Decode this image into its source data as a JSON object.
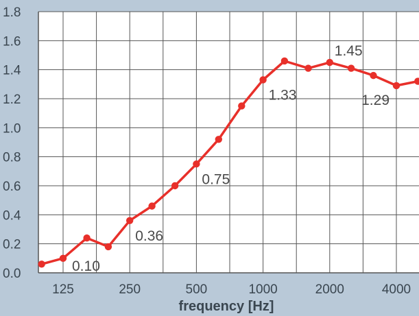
{
  "chart_data": {
    "type": "line",
    "xlabel": "frequency [Hz]",
    "ylabel": "",
    "x_scale": "log2 (third-octave points)",
    "x_ticks": [
      "125",
      "250",
      "500",
      "1000",
      "2000",
      "4000"
    ],
    "y_ticks": [
      "0.0",
      "0.2",
      "0.4",
      "0.6",
      "0.8",
      "1.0",
      "1.2",
      "1.4",
      "1.6",
      "1.8"
    ],
    "ylim": [
      0,
      1.8
    ],
    "grid": true,
    "series": [
      {
        "color": "#e8302a",
        "points": [
          {
            "x": 100,
            "y": 0.06
          },
          {
            "x": 125,
            "y": 0.1
          },
          {
            "x": 160,
            "y": 0.24
          },
          {
            "x": 200,
            "y": 0.18
          },
          {
            "x": 250,
            "y": 0.36
          },
          {
            "x": 315,
            "y": 0.46
          },
          {
            "x": 400,
            "y": 0.6
          },
          {
            "x": 500,
            "y": 0.75
          },
          {
            "x": 630,
            "y": 0.92
          },
          {
            "x": 800,
            "y": 1.15
          },
          {
            "x": 1000,
            "y": 1.33
          },
          {
            "x": 1250,
            "y": 1.46
          },
          {
            "x": 1600,
            "y": 1.41
          },
          {
            "x": 2000,
            "y": 1.45
          },
          {
            "x": 2500,
            "y": 1.41
          },
          {
            "x": 3150,
            "y": 1.36
          },
          {
            "x": 4000,
            "y": 1.29
          },
          {
            "x": 5000,
            "y": 1.32
          }
        ]
      }
    ],
    "data_labels": [
      {
        "x": 125,
        "y": 0.1,
        "text": "0.10"
      },
      {
        "x": 250,
        "y": 0.36,
        "text": "0.36"
      },
      {
        "x": 500,
        "y": 0.75,
        "text": "0.75"
      },
      {
        "x": 1000,
        "y": 1.33,
        "text": "1.33"
      },
      {
        "x": 2000,
        "y": 1.45,
        "text": "1.45"
      },
      {
        "x": 4000,
        "y": 1.29,
        "text": "1.29"
      }
    ]
  }
}
